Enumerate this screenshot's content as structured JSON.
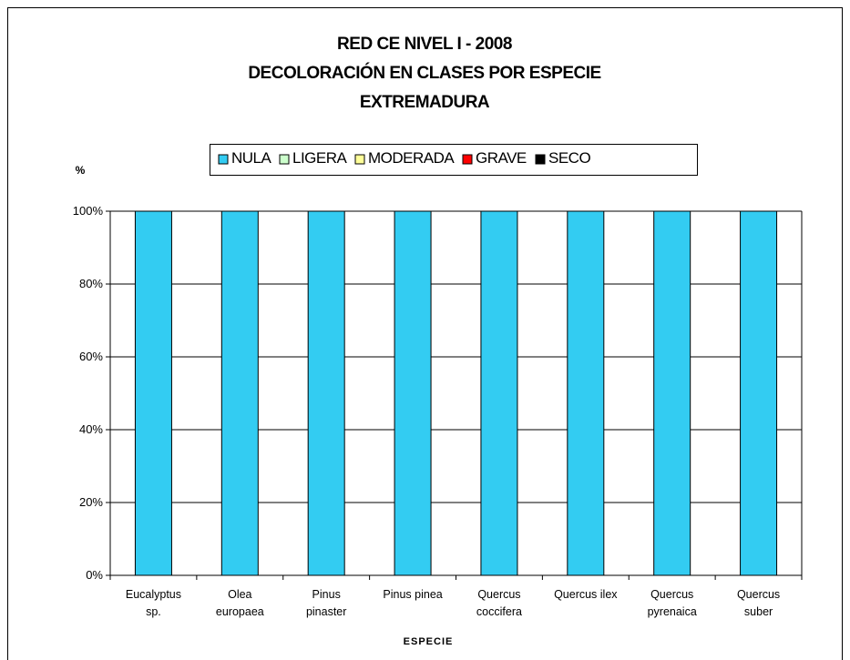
{
  "chart_data": {
    "type": "stacked_bar",
    "title": "RED CE NIVEL I - 2008\nDECOLORACIÓN EN CLASES POR ESPECIE\nEXTREMADURA",
    "ylabel": "%",
    "xlabel": "ESPECIE",
    "categories": [
      "Eucalyptus\nsp.",
      "Olea\neuropaea",
      "Pinus\npinaster",
      "Pinus pinea",
      "Quercus\ncoccifera",
      "Quercus ilex",
      "Quercus\npyrenaica",
      "Quercus\nsuber"
    ],
    "series": [
      {
        "name": "NULA",
        "color": "#33ccf2",
        "values": [
          100,
          100,
          100,
          100,
          100,
          100,
          100,
          100
        ]
      },
      {
        "name": "LIGERA",
        "color": "#ccffcc",
        "values": [
          0,
          0,
          0,
          0,
          0,
          0,
          0,
          0
        ]
      },
      {
        "name": "MODERADA",
        "color": "#ffff99",
        "values": [
          0,
          0,
          0,
          0,
          0,
          0,
          0,
          0
        ]
      },
      {
        "name": "GRAVE",
        "color": "#ff0000",
        "values": [
          0,
          0,
          0,
          0,
          0,
          0,
          0,
          0
        ]
      },
      {
        "name": "SECO",
        "color": "#000000",
        "values": [
          0,
          0,
          0,
          0,
          0,
          0,
          0,
          0
        ]
      }
    ],
    "ylim": [
      0,
      100
    ],
    "yticks": [
      {
        "value": 0,
        "label": "0%"
      },
      {
        "value": 20,
        "label": "20%"
      },
      {
        "value": 40,
        "label": "40%"
      },
      {
        "value": 60,
        "label": "60%"
      },
      {
        "value": 80,
        "label": "80%"
      },
      {
        "value": 100,
        "label": "100%"
      }
    ],
    "grid": true,
    "legend": "top"
  }
}
